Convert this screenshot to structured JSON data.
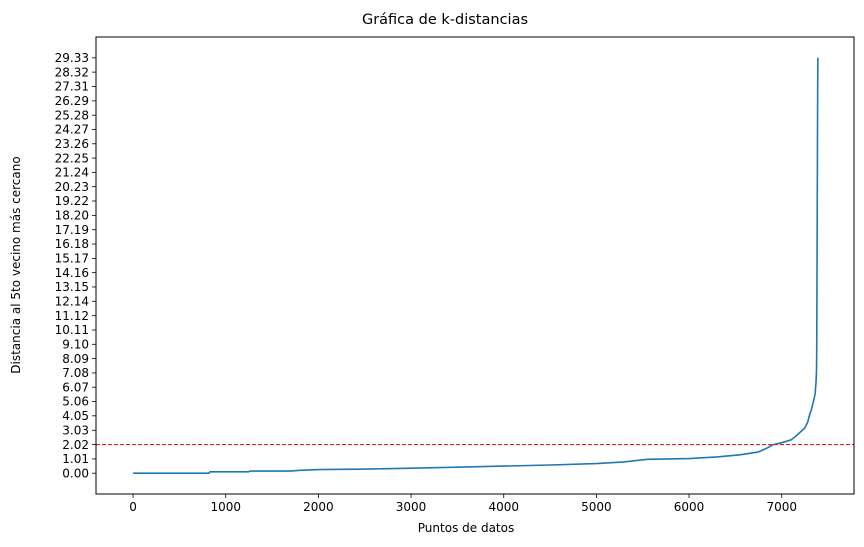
{
  "chart_data": {
    "type": "line",
    "title": "Gráfica de k-distancias",
    "xlabel": "Puntos de datos",
    "ylabel": "Distancia al 5to vecino más cercano",
    "xlim": [
      -400,
      7780
    ],
    "ylim": [
      -1.47,
      30.8
    ],
    "x_ticks": [
      0,
      1000,
      2000,
      3000,
      4000,
      5000,
      6000,
      7000
    ],
    "x_tick_labels": [
      "0",
      "1000",
      "2000",
      "3000",
      "4000",
      "5000",
      "6000",
      "7000"
    ],
    "y_ticks": [
      0,
      1.01,
      2.02,
      3.03,
      4.05,
      5.06,
      6.07,
      7.08,
      8.09,
      9.1,
      10.11,
      11.12,
      12.14,
      13.15,
      14.16,
      15.17,
      16.18,
      17.19,
      18.2,
      19.22,
      20.23,
      21.24,
      22.25,
      23.26,
      24.27,
      25.28,
      26.29,
      27.31,
      28.32,
      29.33
    ],
    "y_tick_labels": [
      "0.00",
      "1.01",
      "2.02",
      "3.03",
      "4.05",
      "5.06",
      "6.07",
      "7.08",
      "8.09",
      "9.10",
      "10.11",
      "11.12",
      "12.14",
      "13.15",
      "14.16",
      "15.17",
      "16.18",
      "17.19",
      "18.20",
      "19.22",
      "20.23",
      "21.24",
      "22.25",
      "23.26",
      "24.27",
      "25.28",
      "26.29",
      "27.31",
      "28.32",
      "29.33"
    ],
    "grid": false,
    "series": [
      {
        "color": "#1f77b4",
        "x": [
          0,
          820,
          830,
          1250,
          1260,
          1700,
          1800,
          2000,
          2400,
          2600,
          3000,
          3500,
          4000,
          4500,
          5000,
          5300,
          5550,
          6000,
          6300,
          6550,
          6750,
          6850,
          6900,
          7000,
          7100,
          7150,
          7250,
          7280,
          7300,
          7320,
          7340,
          7360,
          7370,
          7375,
          7378,
          7380,
          7382,
          7384,
          7386,
          7388,
          7390
        ],
        "y": [
          0.0,
          0.0,
          0.1,
          0.1,
          0.15,
          0.15,
          0.2,
          0.25,
          0.28,
          0.3,
          0.35,
          0.42,
          0.5,
          0.58,
          0.68,
          0.8,
          0.98,
          1.03,
          1.15,
          1.3,
          1.5,
          1.8,
          2.0,
          2.15,
          2.35,
          2.6,
          3.2,
          3.6,
          4.1,
          4.5,
          5.0,
          5.6,
          6.4,
          7.2,
          8.5,
          12.0,
          16.0,
          20.0,
          24.0,
          27.5,
          29.33
        ]
      }
    ],
    "reference_line": {
      "y": 2.02,
      "color": "#d62728",
      "style": "dashed"
    }
  }
}
